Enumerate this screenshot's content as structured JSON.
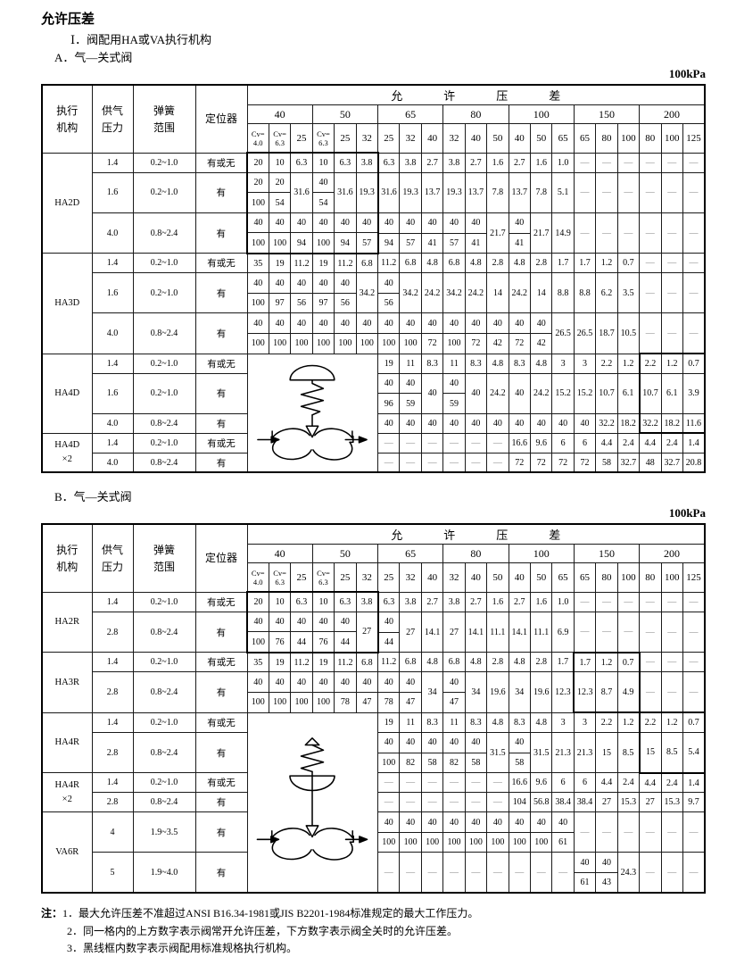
{
  "page": {
    "title": "允许压差",
    "roman": "Ⅰ．阀配用HA或VA执行机构",
    "section_a": "A．气—关式阀",
    "section_b": "B．气—关式阀",
    "unit": "100kPa",
    "notes_label": "注：",
    "notes": [
      "1．最大允许压差不准超过ANSI B16.34-1981或JIS B2201-1984标准规定的最大工作压力。",
      "2．同一格内的上方数字表示阀常开允许压差，下方数字表示阀全关时的允许压差。",
      "3．黑线框内数字表示阀配用标准规格执行机构。"
    ]
  },
  "header": {
    "fixed": [
      [
        "执行",
        "机构"
      ],
      [
        "供气",
        "压力"
      ],
      [
        "弹簧",
        "范围"
      ],
      [
        "定位器"
      ]
    ],
    "span": [
      "允",
      "许",
      "压",
      "差"
    ],
    "sizes": [
      "40",
      "50",
      "65",
      "80",
      "100",
      "150",
      "200"
    ],
    "subcols": [
      "Cv=|4.0",
      "Cv=|6.3",
      "25",
      "Cv=|6.3",
      "25",
      "32",
      "25",
      "32",
      "40",
      "32",
      "40",
      "50",
      "40",
      "50",
      "65",
      "65",
      "80",
      "100",
      "80",
      "100",
      "125"
    ]
  },
  "table_a": {
    "diagram": {
      "row": 6,
      "rowspan": 5,
      "svg": "direct"
    },
    "frames": [
      {
        "r1": 0,
        "r2": 2,
        "c1": 1,
        "c2": 6
      },
      {
        "r1": 6,
        "r2": 8,
        "c1": 19,
        "c2": 21
      }
    ],
    "groups": [
      {
        "name": [
          "HA2D"
        ],
        "rows": [
          {
            "supply": "1.4",
            "spring": "0.2~1.0",
            "pos": "有或无",
            "type": "single",
            "cells": [
              "20",
              "10",
              "6.3",
              "10",
              "6.3",
              "3.8",
              "6.3",
              "3.8",
              "2.7",
              "3.8",
              "2.7",
              "1.6",
              "2.7",
              "1.6",
              "1.0",
              "-",
              "-",
              "-",
              "-",
              "-",
              "-"
            ]
          },
          {
            "supply": "1.6",
            "spring": "0.2~1.0",
            "pos": "有",
            "type": "split",
            "cells": [
              "20/100",
              "20/54",
              "31.6",
              "40/54",
              "31.6",
              "19.3",
              "31.6",
              "19.3",
              "13.7",
              "19.3",
              "13.7",
              "7.8",
              "13.7",
              "7.8",
              "5.1",
              "-",
              "-",
              "-",
              "-",
              "-",
              "-"
            ]
          },
          {
            "supply": "4.0",
            "spring": "0.8~2.4",
            "pos": "有",
            "type": "split",
            "cells": [
              "40/100",
              "40/100",
              "40/94",
              "40/100",
              "40/94",
              "40/57",
              "40/94",
              "40/57",
              "40/41",
              "40/57",
              "40/41",
              "21.7",
              "40/41",
              "21.7",
              "14.9",
              "-",
              "-",
              "-",
              "-",
              "-",
              "-"
            ]
          }
        ]
      },
      {
        "name": [
          "HA3D"
        ],
        "rows": [
          {
            "supply": "1.4",
            "spring": "0.2~1.0",
            "pos": "有或无",
            "type": "single",
            "cells": [
              "35",
              "19",
              "11.2",
              "19",
              "11.2",
              "6.8",
              "11.2",
              "6.8",
              "4.8",
              "6.8",
              "4.8",
              "2.8",
              "4.8",
              "2.8",
              "1.7",
              "1.7",
              "1.2",
              "0.7",
              "-",
              "-",
              "-"
            ]
          },
          {
            "supply": "1.6",
            "spring": "0.2~1.0",
            "pos": "有",
            "type": "split",
            "cells": [
              "40/100",
              "40/97",
              "40/56",
              "40/97",
              "40/56",
              "34.2",
              "40/56",
              "34.2",
              "24.2",
              "34.2",
              "24.2",
              "14",
              "24.2",
              "14",
              "8.8",
              "8.8",
              "6.2",
              "3.5",
              "-",
              "-",
              "-"
            ]
          },
          {
            "supply": "4.0",
            "spring": "0.8~2.4",
            "pos": "有",
            "type": "split",
            "cells": [
              "40/100",
              "40/100",
              "40/100",
              "40/100",
              "40/100",
              "40/100",
              "40/100",
              "40/100",
              "40/72",
              "40/100",
              "40/72",
              "40/42",
              "40/72",
              "40/42",
              "26.5",
              "26.5",
              "18.7",
              "10.5",
              "-",
              "-",
              "-"
            ]
          }
        ]
      },
      {
        "name": [
          "HA4D"
        ],
        "rows": [
          {
            "supply": "1.4",
            "spring": "0.2~1.0",
            "pos": "有或无",
            "type": "single",
            "cells": [
              "19",
              "11",
              "8.3",
              "11",
              "8.3",
              "4.8",
              "8.3",
              "4.8",
              "3",
              "3",
              "2.2",
              "1.2",
              "2.2",
              "1.2",
              "0.7"
            ]
          },
          {
            "supply": "1.6",
            "spring": "0.2~1.0",
            "pos": "有",
            "type": "split",
            "cells": [
              "40/96",
              "40/59",
              "40",
              "40/59",
              "40",
              "24.2",
              "40",
              "24.2",
              "15.2",
              "15.2",
              "10.7",
              "6.1",
              "10.7",
              "6.1",
              "3.9"
            ]
          },
          {
            "supply": "4.0",
            "spring": "0.8~2.4",
            "pos": "有",
            "type": "single",
            "cells": [
              "40",
              "40",
              "40",
              "40",
              "40",
              "40",
              "40",
              "40",
              "40",
              "40",
              "32.2",
              "18.2",
              "32.2",
              "18.2",
              "11.6"
            ]
          }
        ]
      },
      {
        "name": [
          "HA4D",
          "×2"
        ],
        "rows": [
          {
            "supply": "1.4",
            "spring": "0.2~1.0",
            "pos": "有或无",
            "type": "single",
            "cells": [
              "-",
              "-",
              "-",
              "-",
              "-",
              "-",
              "16.6",
              "9.6",
              "6",
              "6",
              "4.4",
              "2.4",
              "4.4",
              "2.4",
              "1.4"
            ]
          },
          {
            "supply": "4.0",
            "spring": "0.8~2.4",
            "pos": "有",
            "type": "single",
            "cells": [
              "-",
              "-",
              "-",
              "-",
              "-",
              "-",
              "72",
              "72",
              "72",
              "72",
              "58",
              "32.7",
              "48",
              "32.7",
              "20.8"
            ]
          }
        ]
      }
    ]
  },
  "table_b": {
    "diagram": {
      "row": 4,
      "rowspan": 6,
      "svg": "reverse"
    },
    "frames": [
      {
        "r1": 0,
        "r2": 1,
        "c1": 1,
        "c2": 6
      },
      {
        "r1": 2,
        "r2": 3,
        "c1": 16,
        "c2": 18
      },
      {
        "r1": 4,
        "r2": 5,
        "c1": 19,
        "c2": 21
      }
    ],
    "groups": [
      {
        "name": [
          "HA2R"
        ],
        "rows": [
          {
            "supply": "1.4",
            "spring": "0.2~1.0",
            "pos": "有或无",
            "type": "single",
            "cells": [
              "20",
              "10",
              "6.3",
              "10",
              "6.3",
              "3.8",
              "6.3",
              "3.8",
              "2.7",
              "3.8",
              "2.7",
              "1.6",
              "2.7",
              "1.6",
              "1.0",
              "-",
              "-",
              "-",
              "-",
              "-",
              "-"
            ]
          },
          {
            "supply": "2.8",
            "spring": "0.8~2.4",
            "pos": "有",
            "type": "split",
            "cells": [
              "40/100",
              "40/76",
              "40/44",
              "40/76",
              "40/44",
              "27",
              "40/44",
              "27",
              "14.1",
              "27",
              "14.1",
              "11.1",
              "14.1",
              "11.1",
              "6.9",
              "-",
              "-",
              "-",
              "-",
              "-",
              "-"
            ]
          }
        ]
      },
      {
        "name": [
          "HA3R"
        ],
        "rows": [
          {
            "supply": "1.4",
            "spring": "0.2~1.0",
            "pos": "有或无",
            "type": "single",
            "cells": [
              "35",
              "19",
              "11.2",
              "19",
              "11.2",
              "6.8",
              "11.2",
              "6.8",
              "4.8",
              "6.8",
              "4.8",
              "2.8",
              "4.8",
              "2.8",
              "1.7",
              "1.7",
              "1.2",
              "0.7",
              "-",
              "-",
              "-"
            ]
          },
          {
            "supply": "2.8",
            "spring": "0.8~2.4",
            "pos": "有",
            "type": "split",
            "cells": [
              "40/100",
              "40/100",
              "40/100",
              "40/100",
              "40/78",
              "40/47",
              "40/78",
              "40/47",
              "34",
              "40/47",
              "34",
              "19.6",
              "34",
              "19.6",
              "12.3",
              "12.3",
              "8.7",
              "4.9",
              "-",
              "-",
              "-"
            ]
          }
        ]
      },
      {
        "name": [
          "HA4R"
        ],
        "rows": [
          {
            "supply": "1.4",
            "spring": "0.2~1.0",
            "pos": "有或无",
            "type": "single",
            "cells": [
              "19",
              "11",
              "8.3",
              "11",
              "8.3",
              "4.8",
              "8.3",
              "4.8",
              "3",
              "3",
              "2.2",
              "1.2",
              "2.2",
              "1.2",
              "0.7"
            ]
          },
          {
            "supply": "2.8",
            "spring": "0.8~2.4",
            "pos": "有",
            "type": "split",
            "cells": [
              "40/100",
              "40/82",
              "40/58",
              "40/82",
              "40/58",
              "31.5",
              "40/58",
              "31.5",
              "21.3",
              "21.3",
              "15",
              "8.5",
              "15",
              "8.5",
              "5.4"
            ]
          }
        ]
      },
      {
        "name": [
          "HA4R",
          "×2"
        ],
        "rows": [
          {
            "supply": "1.4",
            "spring": "0.2~1.0",
            "pos": "有或无",
            "type": "single",
            "cells": [
              "-",
              "-",
              "-",
              "-",
              "-",
              "-",
              "16.6",
              "9.6",
              "6",
              "6",
              "4.4",
              "2.4",
              "4.4",
              "2.4",
              "1.4"
            ]
          },
          {
            "supply": "2.8",
            "spring": "0.8~2.4",
            "pos": "有",
            "type": "single",
            "cells": [
              "-",
              "-",
              "-",
              "-",
              "-",
              "-",
              "104",
              "56.8",
              "38.4",
              "38.4",
              "27",
              "15.3",
              "27",
              "15.3",
              "9.7"
            ]
          }
        ]
      },
      {
        "name": [
          "VA6R"
        ],
        "rows": [
          {
            "supply": "4",
            "spring": "1.9~3.5",
            "pos": "有",
            "type": "split",
            "cells": [
              "40/100",
              "40/100",
              "40/100",
              "40/100",
              "40/100",
              "40/100",
              "40/100",
              "40/100",
              "40/61",
              "-",
              "-",
              "-",
              "-",
              "-",
              "-"
            ]
          },
          {
            "supply": "5",
            "spring": "1.9~4.0",
            "pos": "有",
            "type": "split",
            "cells": [
              "-",
              "-",
              "-",
              "-",
              "-",
              "-",
              "-",
              "-",
              "-",
              "40/61",
              "40/43",
              "24.3",
              "-",
              "-",
              "-"
            ]
          }
        ]
      }
    ]
  }
}
